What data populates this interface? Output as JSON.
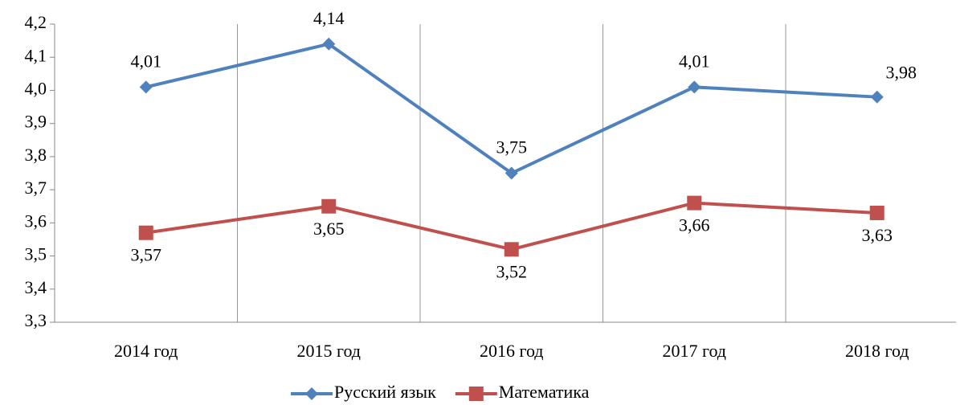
{
  "chart_data": {
    "type": "line",
    "categories": [
      "2014 год",
      "2015 год",
      "2016 год",
      "2017 год",
      "2018 год"
    ],
    "series": [
      {
        "name": "Русский язык",
        "color": "#4f81bd",
        "marker": "diamond",
        "values": [
          4.01,
          4.14,
          3.75,
          4.01,
          3.98
        ],
        "value_labels": [
          "4,01",
          "4,14",
          "3,75",
          "4,01",
          "3,98"
        ]
      },
      {
        "name": "Математика",
        "color": "#c0504d",
        "marker": "square",
        "values": [
          3.57,
          3.65,
          3.52,
          3.66,
          3.63
        ],
        "value_labels": [
          "3,57",
          "3,65",
          "3,52",
          "3,66",
          "3,63"
        ]
      }
    ],
    "ylim": [
      3.3,
      4.2
    ],
    "yticks": [
      {
        "value": 3.3,
        "label": "3,3"
      },
      {
        "value": 3.4,
        "label": "3,4"
      },
      {
        "value": 3.5,
        "label": "3,5"
      },
      {
        "value": 3.6,
        "label": "3,6"
      },
      {
        "value": 3.7,
        "label": "3,7"
      },
      {
        "value": 3.8,
        "label": "3,8"
      },
      {
        "value": 3.9,
        "label": "3,9"
      },
      {
        "value": 4.0,
        "label": "4,0"
      },
      {
        "value": 4.1,
        "label": "4,1"
      },
      {
        "value": 4.2,
        "label": "4,2"
      }
    ],
    "legend": "bottom"
  }
}
